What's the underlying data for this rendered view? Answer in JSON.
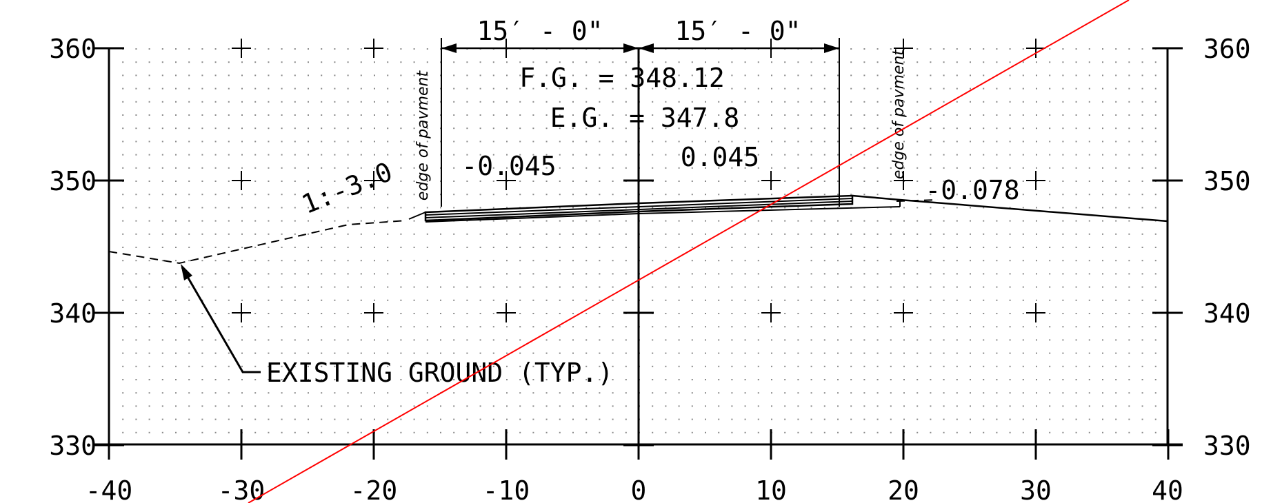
{
  "axes": {
    "x_ticks": [
      "-40",
      "-30",
      "-20",
      "-10",
      "0",
      "10",
      "20",
      "30",
      "40"
    ],
    "y_ticks_left": [
      "360",
      "350",
      "340",
      "330"
    ],
    "y_ticks_right": [
      "360",
      "350",
      "340",
      "330"
    ],
    "x_range": [
      -40,
      40
    ],
    "y_range": [
      330,
      360
    ],
    "grid": "dotted"
  },
  "dimensions": {
    "left": "15′ - 0\"",
    "right": "15′ - 0\""
  },
  "labels": {
    "fg": "F.G. = 348.12",
    "eg": "E.G. = 347.8",
    "slope_left": "-0.045",
    "slope_right": "0.045",
    "slope_shoulder": "-0.078",
    "side_slope": "1:-3.0",
    "edge_left": "edge of pavment",
    "edge_right": "edge of pavment",
    "existing_ground": "EXISTING GROUND (TYP.)"
  },
  "colors": {
    "line": "#000000",
    "red_line": "#ff0000"
  }
}
